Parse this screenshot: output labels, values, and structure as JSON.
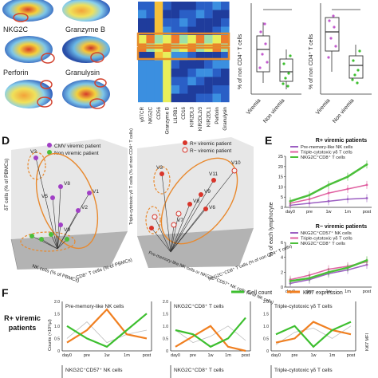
{
  "panel_a": {
    "tsne_labels": [
      "NKG2C",
      "Granzyme B",
      "Perforin",
      "Granulysin"
    ]
  },
  "panel_b": {
    "markers": [
      "γδTCR",
      "NKG2C",
      "CD56",
      "Granzyme B",
      "LILRB1",
      "CD16",
      "KIR2DL3",
      "KIR2DL2/3",
      "KIR2DL1",
      "Perforin",
      "Granulysin"
    ]
  },
  "panel_c": {
    "ylabel": "% of non CD4⁺ T cells",
    "categories": [
      "Viremia",
      "Non viremia"
    ]
  },
  "panel_d": {
    "label": "D",
    "left": {
      "legend": [
        "CMV viremic patient",
        "Non viremic patient"
      ],
      "z_axis": "δT cells (% of PBMCs)",
      "x_axis": "NK cells (% of PBMCs)",
      "y_axis": "CD8⁺ T cells (% of PBMCs)",
      "points": [
        "V3",
        "V5",
        "V9",
        "V2",
        "V1",
        "V8"
      ]
    },
    "right": {
      "legend": [
        "R+ viremic patient",
        "R− viremic patient"
      ],
      "z_axis": "Triple-cytotoxic γδ T cells (% of non CD4⁺ T cells)",
      "x_axis": "Pre-memory-like NK cells or NKG2C⁺CD57⁺ NK cells (% of NK cells)",
      "y_axis": "NKG2C⁺CD8⁺ T cells (% of non CD4⁺ T cells)",
      "points": [
        "V3",
        "V10",
        "V11",
        "V9",
        "V8",
        "V6",
        "V7"
      ]
    }
  },
  "panel_e": {
    "label": "E",
    "ylabel": "% of each lymphocyte",
    "xticks": [
      "day0",
      "pre",
      "1w",
      "1m",
      "post"
    ],
    "top": {
      "title": "R+ viremic patients",
      "legend": [
        "Pre-memory-like NK cells",
        "Triple-cytotoxic γδ T cells",
        "NKG2C⁺CD8⁺ T cells"
      ],
      "yticks": [
        "0",
        "5",
        "10",
        "15",
        "20",
        "25"
      ]
    },
    "bottom": {
      "title": "R− viremic patients",
      "legend": [
        "NKG2C⁺CD57⁺ NK cells",
        "Triple-cytotoxic γδ T cells",
        "NKG2C⁺CD8⁺ T cells"
      ],
      "yticks": [
        "0",
        "2",
        "4",
        "6"
      ]
    },
    "colors": {
      "nk": "#9c5fc2",
      "gd": "#e05fa0",
      "cd8": "#4bbf3a"
    }
  },
  "panel_f": {
    "label": "F",
    "side_label": "R+ viremic patients",
    "legend": [
      "Cell count",
      "Ki67 expression"
    ],
    "ylabel_left": "Counts (×10³/µl)",
    "ylabel_right": "Ki67 MFI",
    "xticks": [
      "day0",
      "pre",
      "1w",
      "1m",
      "post"
    ],
    "subplots": [
      "Pre-memory-like NK cells",
      "NKG2C⁺CD8⁺ T cells",
      "Triple-cytotoxic γδ T cells"
    ],
    "bottom_subplots": [
      "NKG2C⁺CD57⁺ NK cells",
      "NKG2C⁺CD8⁺ T cells",
      "Triple-cytotoxic γδ T cells"
    ],
    "colors": {
      "count": "#3dbf2f",
      "ki67": "#f07f20"
    }
  }
}
